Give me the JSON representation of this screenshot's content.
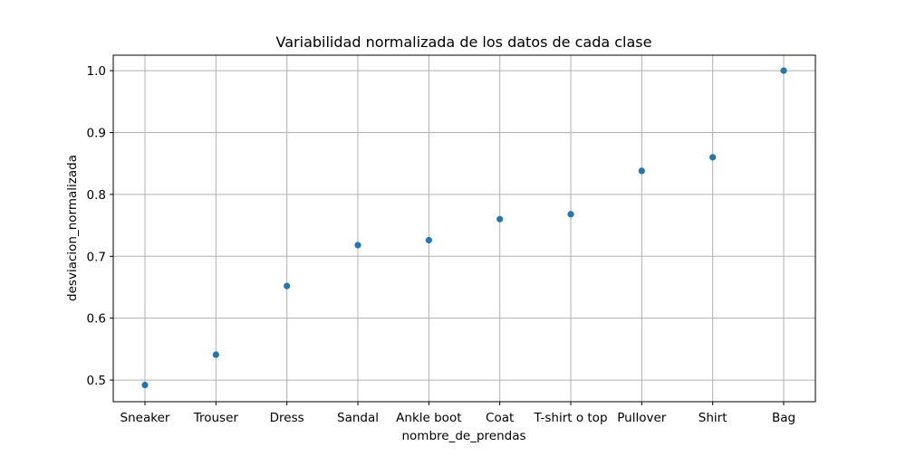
{
  "chart_data": {
    "type": "scatter",
    "title": "Variabilidad normalizada de los datos de cada clase",
    "xlabel": "nombre_de_prendas",
    "ylabel": "desviacion_normalizada",
    "categories": [
      "Sneaker",
      "Trouser",
      "Dress",
      "Sandal",
      "Ankle boot",
      "Coat",
      "T-shirt o top",
      "Pullover",
      "Shirt",
      "Bag"
    ],
    "values": [
      0.492,
      0.541,
      0.652,
      0.718,
      0.726,
      0.76,
      0.768,
      0.838,
      0.86,
      1.0
    ],
    "yticks": [
      "0.5",
      "0.6",
      "0.7",
      "0.8",
      "0.9",
      "1.0"
    ],
    "ylim": [
      0.465,
      1.025
    ],
    "grid": true,
    "marker_color": "#1f77b4"
  }
}
